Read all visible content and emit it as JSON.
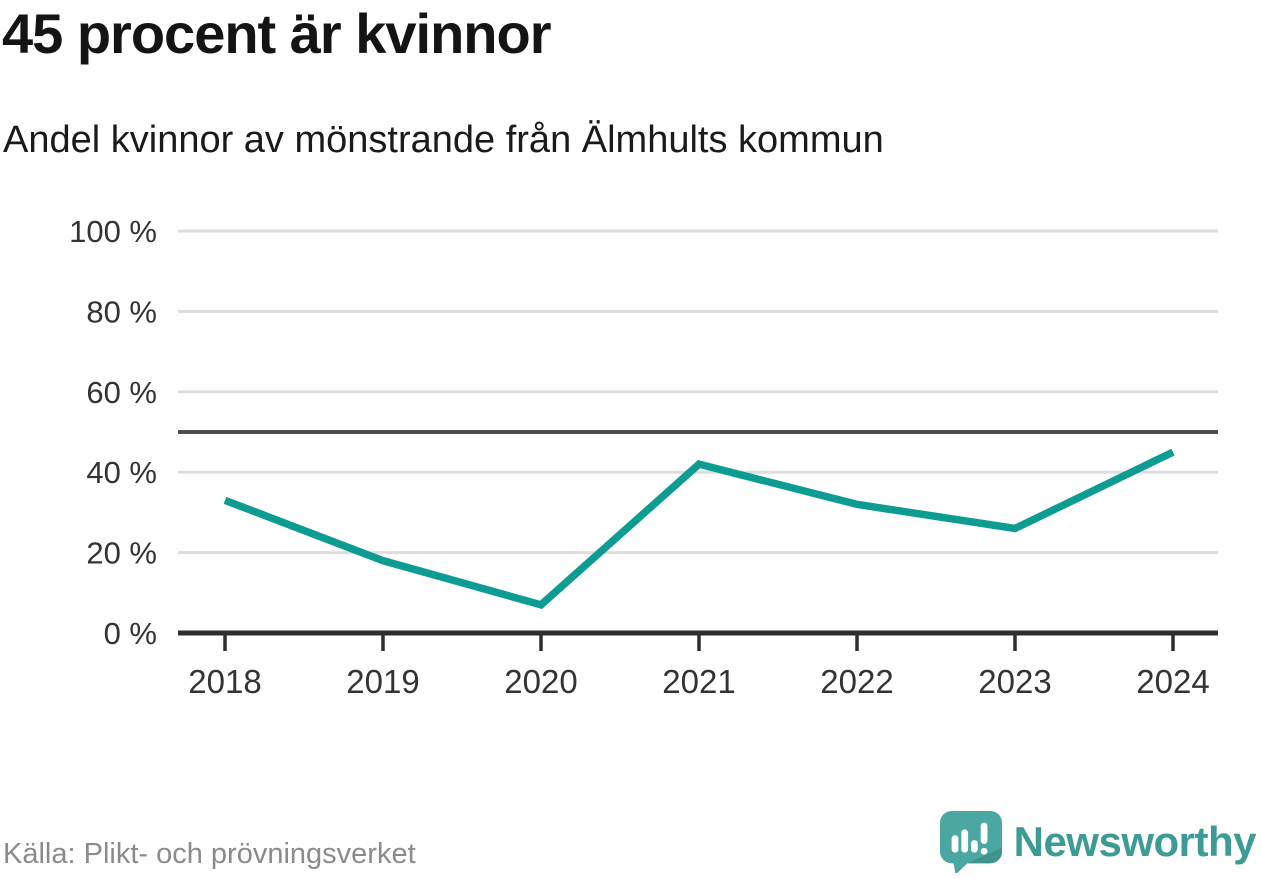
{
  "header": {
    "title": "45 procent är kvinnor",
    "subtitle": "Andel kvinnor av mönstrande från Älmhults kommun"
  },
  "footer": {
    "source": "Källa: Plikt- och prövningsverket",
    "brand_name": "Newsworthy"
  },
  "colors": {
    "line": "#0d9c92",
    "reference_line": "#4d4d4d",
    "gridline": "#dddddd",
    "axis": "#2e2e2e",
    "tick_label": "#333333",
    "source_text": "#8b8b8b",
    "brand_teal": "#3d9b95",
    "logo_bubble": "#4ba7a1",
    "logo_bubble_shade": "#3f948e"
  },
  "chart_data": {
    "type": "line",
    "title": "45 procent är kvinnor",
    "subtitle": "Andel kvinnor av mönstrande från Älmhults kommun",
    "x": [
      "2018",
      "2019",
      "2020",
      "2021",
      "2022",
      "2023",
      "2024"
    ],
    "series": [
      {
        "name": "Andel kvinnor av mönstrande",
        "values": [
          33,
          18,
          7,
          42,
          32,
          26,
          45
        ],
        "color": "#0d9c92"
      }
    ],
    "unit": "%",
    "ylim": [
      0,
      100
    ],
    "yticks": [
      0,
      20,
      40,
      60,
      80,
      100
    ],
    "ytick_labels": [
      "0 %",
      "20 %",
      "40 %",
      "60 %",
      "80 %",
      "100 %"
    ],
    "reference_line": {
      "value": 50
    },
    "grid": true,
    "legend": "none",
    "markers": false
  }
}
